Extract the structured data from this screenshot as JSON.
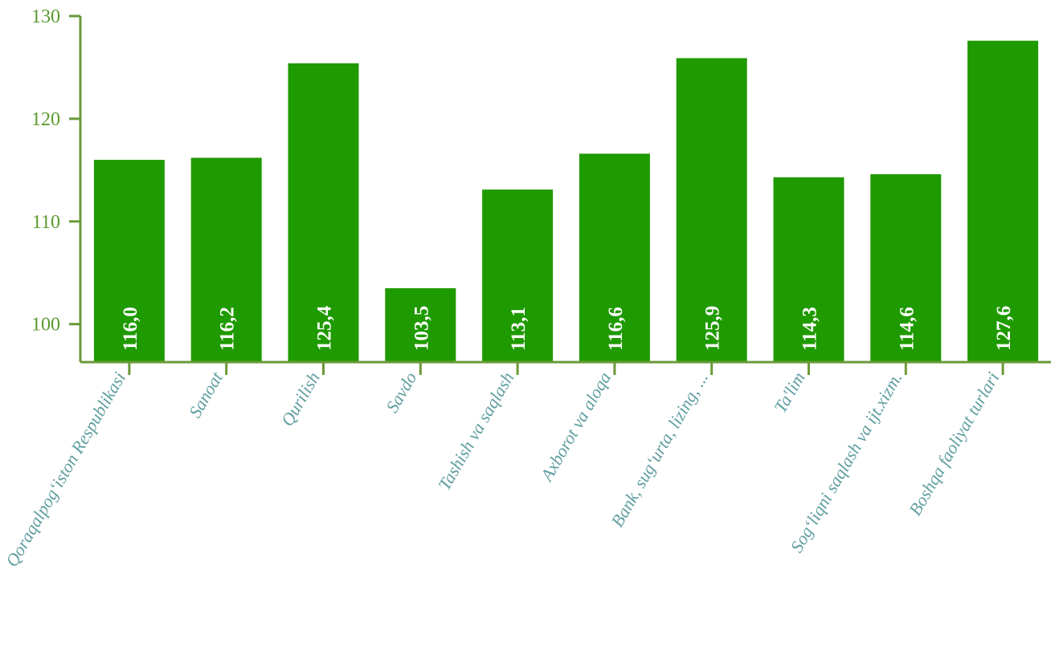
{
  "chart_data": {
    "type": "bar",
    "title": "",
    "xlabel": "",
    "ylabel": "",
    "categories": [
      "Qoraqalpog‘iston Respublikasi",
      "Sanoat",
      "Qurilish",
      "Savdo",
      "Tashish va saqlash",
      "Axborot va aloqa",
      "Bank, sug‘urta, lizing, ...",
      "Ta'lim",
      "Sog‘liqni saqlash va ijt.xizm.",
      "Boshqa faoliyat turlari"
    ],
    "values": [
      116.0,
      116.2,
      125.4,
      103.5,
      113.1,
      116.6,
      125.9,
      114.3,
      114.6,
      127.6
    ],
    "data_labels": [
      "116,0",
      "116,2",
      "125,4",
      "103,5",
      "113,1",
      "116,6",
      "125,9",
      "114,3",
      "114,6",
      "127,6"
    ],
    "ylim": [
      96.3,
      130
    ],
    "yticks": [
      100,
      110,
      120,
      130
    ],
    "ytick_labels": [
      "100",
      "110",
      "120",
      "130"
    ],
    "grid": false,
    "colors": {
      "bar": "#1f9a00",
      "axis": "#6a9a3a",
      "tick_text": "#5b9a2e",
      "category_text": "#5f9ea0",
      "data_label_text": "#ffffff"
    }
  }
}
